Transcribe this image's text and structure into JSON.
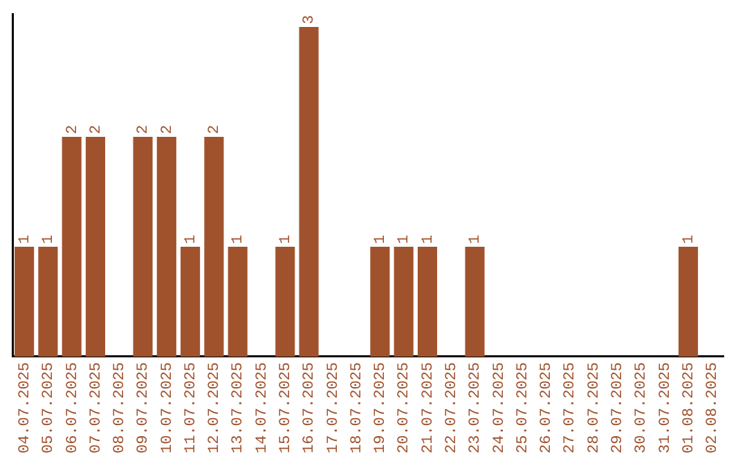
{
  "chart_data": {
    "type": "bar",
    "categories": [
      "04.07.2025",
      "05.07.2025",
      "06.07.2025",
      "07.07.2025",
      "08.07.2025",
      "09.07.2025",
      "10.07.2025",
      "11.07.2025",
      "12.07.2025",
      "13.07.2025",
      "14.07.2025",
      "15.07.2025",
      "16.07.2025",
      "17.07.2025",
      "18.07.2025",
      "19.07.2025",
      "20.07.2025",
      "21.07.2025",
      "22.07.2025",
      "23.07.2025",
      "24.07.2025",
      "25.07.2025",
      "26.07.2025",
      "27.07.2025",
      "28.07.2025",
      "29.07.2025",
      "30.07.2025",
      "31.07.2025",
      "01.08.2025",
      "02.08.2025"
    ],
    "values": [
      1,
      1,
      2,
      2,
      0,
      2,
      2,
      1,
      2,
      1,
      0,
      1,
      3,
      0,
      0,
      1,
      1,
      1,
      0,
      1,
      0,
      0,
      0,
      0,
      0,
      0,
      0,
      0,
      1,
      0
    ],
    "value_labels": [
      "1",
      "1",
      "2",
      "2",
      null,
      "2",
      "2",
      "1",
      "2",
      "1",
      null,
      "1",
      "3",
      null,
      null,
      "1",
      "1",
      "1",
      null,
      "1",
      null,
      null,
      null,
      null,
      null,
      null,
      null,
      null,
      "1",
      null
    ],
    "color": "#a0522d",
    "ylim": [
      0,
      3.12
    ],
    "tick_labels": "x",
    "grid": false,
    "legend": false
  }
}
